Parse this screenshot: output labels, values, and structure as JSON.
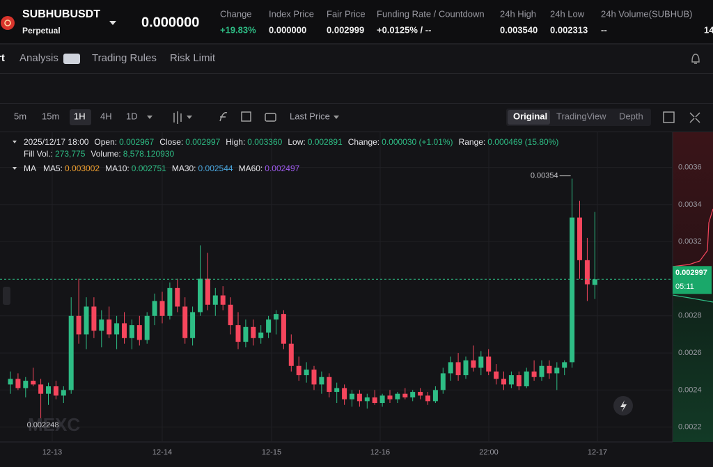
{
  "header": {
    "symbol": "SUBHUBUSDT",
    "contract": "Perpetual",
    "last_price": "0.000000",
    "stats": [
      {
        "label": "Change",
        "value": "+19.83%"
      },
      {
        "label": "Index Price",
        "value": "0.000000"
      },
      {
        "label": "Fair Price",
        "value": "0.002999"
      },
      {
        "label": "Funding Rate / Countdown",
        "value": "+0.0125% / --"
      },
      {
        "label": "24h High",
        "value": "0.003540"
      },
      {
        "label": "24h Low",
        "value": "0.002313"
      },
      {
        "label": "24h Volume(SUBHUB)",
        "value": "--"
      },
      {
        "label": "",
        "value": "14"
      }
    ]
  },
  "tabs": [
    "rt",
    "Analysis",
    "Trading Rules",
    "Risk Limit"
  ],
  "toolbar": {
    "intervals": [
      "5m",
      "15m",
      "1H",
      "4H",
      "1D"
    ],
    "price_type": "Last Price",
    "views": [
      "Original",
      "TradingView",
      "Depth"
    ]
  },
  "chart_data": {
    "type": "candlestick",
    "info": [
      {
        "label": "2025/12/17 18:00",
        "value": ""
      },
      {
        "label": "Open:",
        "value": "0.002967"
      },
      {
        "label": "Close:",
        "value": "0.002997"
      },
      {
        "label": "High:",
        "value": "0.003360"
      },
      {
        "label": "Low:",
        "value": "0.002891"
      },
      {
        "label": "Change:",
        "value": "0.000030 (+1.01%)"
      },
      {
        "label": "Range:",
        "value": "0.000469 (15.80%)"
      }
    ],
    "info2": [
      {
        "label": "Fill Vol.:",
        "value": "273,775"
      },
      {
        "label": "Volume:",
        "value": "8,578.120930"
      }
    ],
    "ma_label": "MA",
    "ma": [
      {
        "label": "MA5:",
        "value": "0.003002",
        "color": "#f0a030"
      },
      {
        "label": "MA10:",
        "value": "0.002751",
        "color": "#2ebd85"
      },
      {
        "label": "MA30:",
        "value": "0.002544",
        "color": "#4aa8e0"
      },
      {
        "label": "MA60:",
        "value": "0.002497",
        "color": "#a05cf0"
      }
    ],
    "up_color": "#2ebd85",
    "down_color": "#f6465d",
    "candles": [
      [
        0.00243,
        0.0025,
        0.00238,
        0.00246
      ],
      [
        0.00246,
        0.00249,
        0.0024,
        0.00241
      ],
      [
        0.00241,
        0.00247,
        0.00236,
        0.00245
      ],
      [
        0.00245,
        0.00252,
        0.00242,
        0.00243
      ],
      [
        0.00243,
        0.00246,
        0.002248,
        0.00238
      ],
      [
        0.00238,
        0.00244,
        0.00232,
        0.00242
      ],
      [
        0.00242,
        0.00245,
        0.00235,
        0.00237
      ],
      [
        0.00237,
        0.00242,
        0.00233,
        0.0024
      ],
      [
        0.0024,
        0.0029,
        0.00238,
        0.0028
      ],
      [
        0.0028,
        0.003,
        0.00265,
        0.0027
      ],
      [
        0.0027,
        0.0029,
        0.00262,
        0.00285
      ],
      [
        0.00285,
        0.0029,
        0.00268,
        0.00272
      ],
      [
        0.00272,
        0.00283,
        0.00263,
        0.00278
      ],
      [
        0.00278,
        0.00285,
        0.00268,
        0.0027
      ],
      [
        0.0027,
        0.0028,
        0.00262,
        0.00276
      ],
      [
        0.00276,
        0.00282,
        0.00265,
        0.00268
      ],
      [
        0.00268,
        0.00278,
        0.00262,
        0.00275
      ],
      [
        0.00275,
        0.0028,
        0.00264,
        0.00267
      ],
      [
        0.00267,
        0.00282,
        0.00265,
        0.0028
      ],
      [
        0.0028,
        0.00292,
        0.00275,
        0.00288
      ],
      [
        0.00288,
        0.00293,
        0.00276,
        0.0028
      ],
      [
        0.0028,
        0.00298,
        0.00278,
        0.00295
      ],
      [
        0.00295,
        0.003,
        0.00282,
        0.00285
      ],
      [
        0.00285,
        0.0029,
        0.00265,
        0.00268
      ],
      [
        0.00268,
        0.00285,
        0.00264,
        0.00282
      ],
      [
        0.00282,
        0.00318,
        0.0028,
        0.003
      ],
      [
        0.003,
        0.00314,
        0.00283,
        0.00286
      ],
      [
        0.00286,
        0.00295,
        0.0028,
        0.00291
      ],
      [
        0.00291,
        0.00296,
        0.00283,
        0.00286
      ],
      [
        0.00286,
        0.0029,
        0.0027,
        0.00275
      ],
      [
        0.00275,
        0.00282,
        0.00262,
        0.00266
      ],
      [
        0.00266,
        0.00278,
        0.00263,
        0.00274
      ],
      [
        0.00274,
        0.00278,
        0.00264,
        0.00268
      ],
      [
        0.00268,
        0.00275,
        0.00265,
        0.00271
      ],
      [
        0.00271,
        0.0028,
        0.00268,
        0.00278
      ],
      [
        0.00278,
        0.00283,
        0.0027,
        0.00281
      ],
      [
        0.00281,
        0.00283,
        0.00262,
        0.00265
      ],
      [
        0.00265,
        0.0027,
        0.0025,
        0.00253
      ],
      [
        0.00253,
        0.00258,
        0.00245,
        0.00248
      ],
      [
        0.00248,
        0.00255,
        0.00244,
        0.00251
      ],
      [
        0.00251,
        0.00253,
        0.0024,
        0.00243
      ],
      [
        0.00243,
        0.0025,
        0.00238,
        0.00247
      ],
      [
        0.00247,
        0.00249,
        0.00236,
        0.00239
      ],
      [
        0.00239,
        0.00244,
        0.00233,
        0.00241
      ],
      [
        0.00241,
        0.00243,
        0.00232,
        0.00235
      ],
      [
        0.00235,
        0.0024,
        0.00231,
        0.00238
      ],
      [
        0.00238,
        0.0024,
        0.00231,
        0.00234
      ],
      [
        0.00234,
        0.00238,
        0.0023,
        0.00236
      ],
      [
        0.00236,
        0.0024,
        0.00232,
        0.00233
      ],
      [
        0.00233,
        0.00238,
        0.00231,
        0.00237
      ],
      [
        0.00237,
        0.0024,
        0.00233,
        0.00235
      ],
      [
        0.00235,
        0.00239,
        0.00233,
        0.00238
      ],
      [
        0.00238,
        0.00241,
        0.00235,
        0.00236
      ],
      [
        0.00236,
        0.0024,
        0.00234,
        0.00239
      ],
      [
        0.00239,
        0.00241,
        0.00235,
        0.00237
      ],
      [
        0.00237,
        0.00239,
        0.00232,
        0.00234
      ],
      [
        0.00234,
        0.00242,
        0.00233,
        0.0024
      ],
      [
        0.0024,
        0.00252,
        0.00238,
        0.00249
      ],
      [
        0.00249,
        0.00258,
        0.00245,
        0.00255
      ],
      [
        0.00255,
        0.0026,
        0.00245,
        0.00248
      ],
      [
        0.00248,
        0.00258,
        0.00246,
        0.00256
      ],
      [
        0.00256,
        0.00264,
        0.0025,
        0.00252
      ],
      [
        0.00252,
        0.00261,
        0.00248,
        0.00258
      ],
      [
        0.00258,
        0.00262,
        0.00248,
        0.0025
      ],
      [
        0.0025,
        0.00254,
        0.00243,
        0.00246
      ],
      [
        0.00246,
        0.0025,
        0.0024,
        0.00243
      ],
      [
        0.00243,
        0.0025,
        0.00241,
        0.00248
      ],
      [
        0.00248,
        0.0025,
        0.0024,
        0.00242
      ],
      [
        0.00242,
        0.00252,
        0.00241,
        0.0025
      ],
      [
        0.0025,
        0.00256,
        0.00245,
        0.00247
      ],
      [
        0.00247,
        0.00256,
        0.00245,
        0.00253
      ],
      [
        0.00253,
        0.00256,
        0.00246,
        0.00249
      ],
      [
        0.00249,
        0.00255,
        0.0024,
        0.00252
      ],
      [
        0.00252,
        0.00256,
        0.00248,
        0.00255
      ],
      [
        0.00255,
        0.00354,
        0.00252,
        0.00333
      ],
      [
        0.00333,
        0.00342,
        0.003,
        0.0031
      ],
      [
        0.0031,
        0.00322,
        0.00288,
        0.00297
      ],
      [
        0.002967,
        0.00336,
        0.002891,
        0.002997
      ]
    ],
    "ylim": [
      0.00212,
      0.00379
    ],
    "yticks": [
      0.0022,
      0.0024,
      0.0026,
      0.0028,
      0.0032,
      0.0034,
      0.0036
    ],
    "xtick_labels": [
      "12-13",
      "12-14",
      "12-15",
      "12-16",
      "22:00",
      "12-17"
    ],
    "high_label": "0.00354",
    "low_label": "0.002248",
    "price_tag": "0.002997",
    "countdown": "05:11",
    "watermark": "MEXC"
  }
}
